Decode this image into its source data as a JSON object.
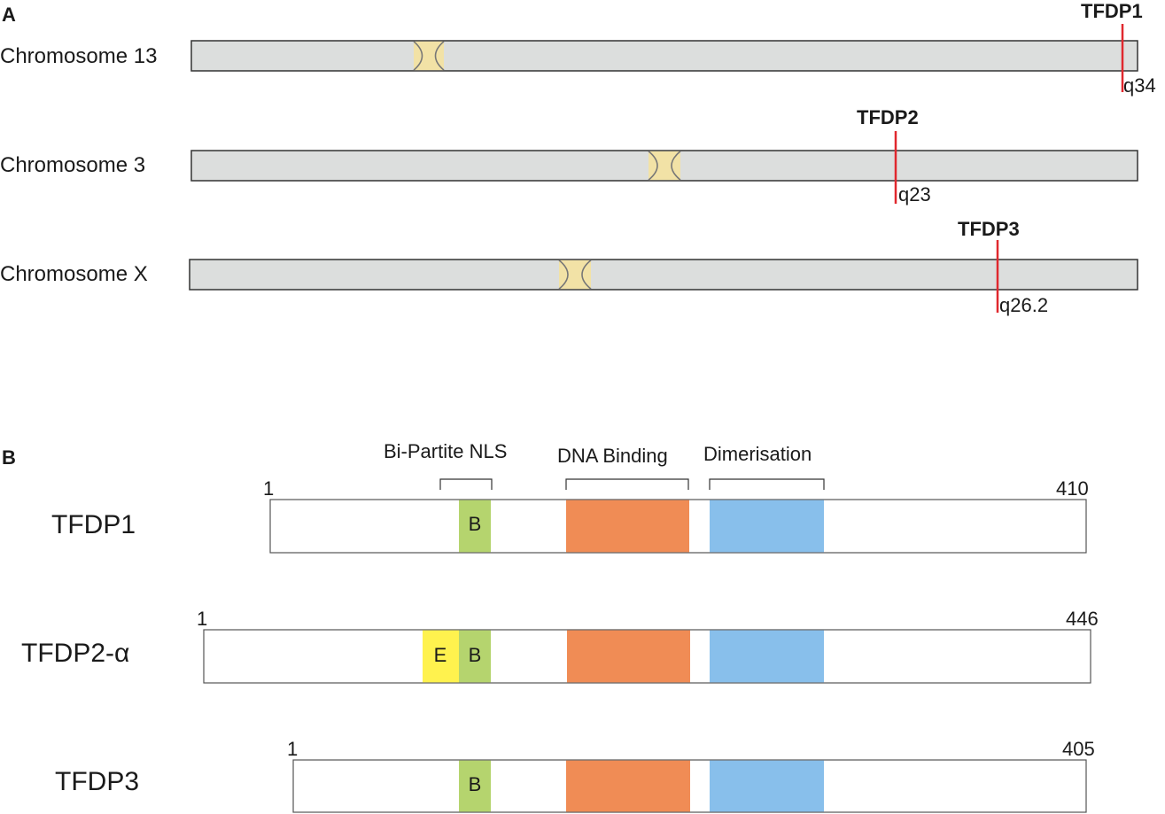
{
  "panel_a": {
    "letter": "A",
    "chromosomes": [
      {
        "name": "Chromosome 13",
        "gene": "TFDP1",
        "band": "q34"
      },
      {
        "name": "Chromosome 3",
        "gene": "TFDP2",
        "band": "q23"
      },
      {
        "name": "Chromosome X",
        "gene": "TFDP3",
        "band": "q26.2"
      }
    ]
  },
  "panel_b": {
    "letter": "B",
    "domain_headers": [
      "Bi-Partite NLS",
      "DNA Binding",
      "Dimerisation"
    ],
    "proteins": [
      {
        "name": "TFDP1",
        "start": "1",
        "end": "410",
        "boxes": [
          "B"
        ]
      },
      {
        "name": "TFDP2-α",
        "start": "1",
        "end": "446",
        "boxes": [
          "E",
          "B"
        ]
      },
      {
        "name": "TFDP3",
        "start": "1",
        "end": "405",
        "boxes": [
          "B"
        ]
      }
    ]
  },
  "colors": {
    "chromosome_fill": "#dcdedd",
    "centromere": "#f2e2a6",
    "locus_marker": "#e0282e",
    "nls_b": "#b5d46e",
    "nls_e": "#fff24e",
    "dna_binding": "#f08c55",
    "dimerisation": "#88bfeb"
  }
}
